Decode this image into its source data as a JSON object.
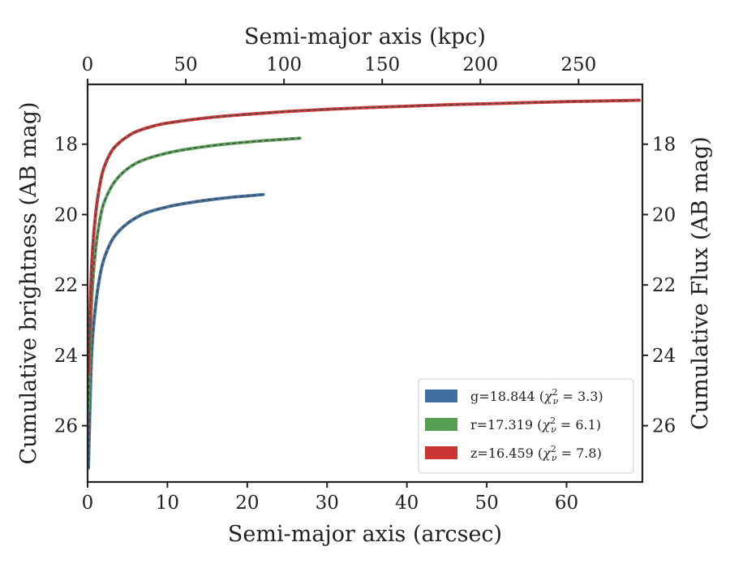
{
  "chart_data": {
    "type": "line",
    "xlabel": "Semi-major axis (arcsec)",
    "x2label": "Semi-major axis (kpc)",
    "ylabel": "Cumulative brightness (AB mag)",
    "y2label": "Cumulative Flux (AB mag)",
    "xlim": [
      0,
      69.5
    ],
    "x2lim": [
      0,
      282.5
    ],
    "ylim": [
      27.6,
      16.3
    ],
    "y_inverted": true,
    "xticks": [
      0,
      10,
      20,
      30,
      40,
      50,
      60
    ],
    "x2ticks": [
      0,
      50,
      100,
      150,
      200,
      250
    ],
    "yticks": [
      18,
      20,
      22,
      24,
      26
    ],
    "grid": false,
    "legend_placement": "lower-right",
    "series": [
      {
        "name": "g=18.844",
        "chi_label": "χ²ν = 3.3",
        "color": "#3e6fa0",
        "model_color": "#444444",
        "x": [
          0.1,
          0.5,
          1,
          1.5,
          2,
          3,
          4,
          5,
          6,
          7,
          8,
          10,
          12,
          14,
          16,
          18,
          20,
          22
        ],
        "y": [
          27.2,
          24.0,
          22.6,
          21.8,
          21.3,
          20.75,
          20.45,
          20.25,
          20.1,
          19.98,
          19.9,
          19.78,
          19.69,
          19.62,
          19.56,
          19.51,
          19.47,
          19.43
        ]
      },
      {
        "name": "r=17.319",
        "chi_label": "χ²ν = 6.1",
        "color": "#55a055",
        "model_color": "#444444",
        "x": [
          0.1,
          0.5,
          1,
          1.5,
          2,
          3,
          4,
          5,
          6,
          7,
          8,
          10,
          12,
          14,
          16,
          18,
          20,
          22,
          24,
          26.6
        ],
        "y": [
          25.5,
          22.5,
          21.0,
          20.2,
          19.7,
          19.2,
          18.9,
          18.7,
          18.55,
          18.45,
          18.37,
          18.25,
          18.16,
          18.09,
          18.03,
          17.98,
          17.94,
          17.9,
          17.87,
          17.83
        ]
      },
      {
        "name": "z=16.459",
        "chi_label": "χ²ν = 7.8",
        "color": "#cc3333",
        "model_color": "#444444",
        "x": [
          0.1,
          0.5,
          1,
          1.5,
          2,
          3,
          4,
          5,
          6,
          8,
          10,
          15,
          20,
          25,
          30,
          35,
          40,
          45,
          50,
          55,
          60,
          65,
          69.1
        ],
        "y": [
          24.5,
          21.5,
          20.0,
          19.2,
          18.7,
          18.2,
          17.95,
          17.78,
          17.65,
          17.5,
          17.4,
          17.25,
          17.15,
          17.07,
          17.01,
          16.96,
          16.92,
          16.88,
          16.85,
          16.82,
          16.79,
          16.77,
          16.75
        ]
      }
    ]
  }
}
